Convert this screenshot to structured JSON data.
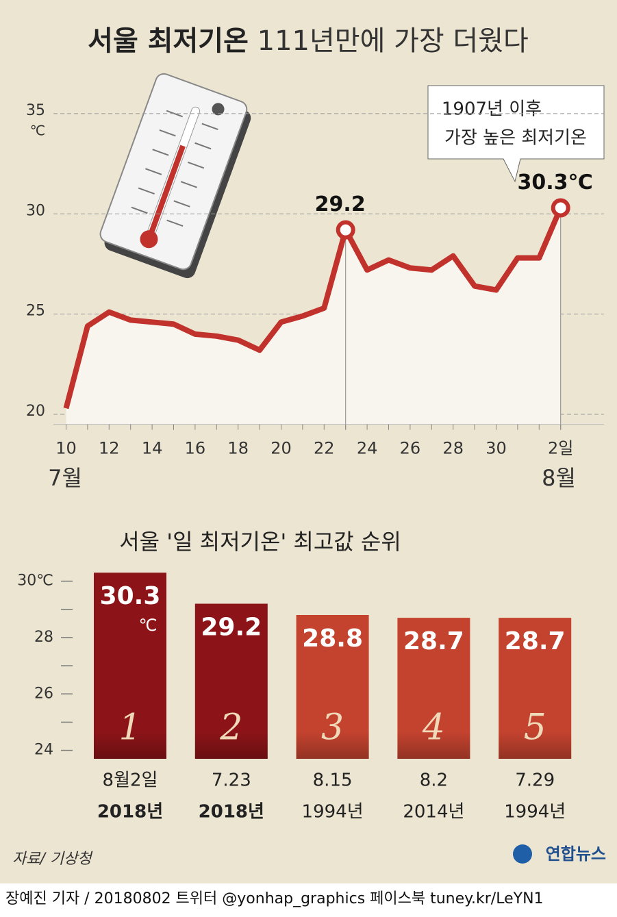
{
  "title_bold": "서울 최저기온",
  "title_light": "111년만에 가장 더웠다",
  "chart_data": [
    {
      "type": "line",
      "color": "#c0322b",
      "categories": [
        "10",
        null,
        "12",
        null,
        "14",
        null,
        "16",
        null,
        "18",
        null,
        "20",
        null,
        "22",
        null,
        "24",
        null,
        "26",
        null,
        "28",
        null,
        "30",
        null,
        null,
        "2일"
      ],
      "months": [
        "7월",
        "8월"
      ],
      "values": [
        20.3,
        24.4,
        25.1,
        24.7,
        24.6,
        24.5,
        24.0,
        23.9,
        23.7,
        23.2,
        24.6,
        24.9,
        25.3,
        29.2,
        27.2,
        27.7,
        27.3,
        27.2,
        27.9,
        26.4,
        26.2,
        27.8,
        27.8,
        30.3
      ],
      "value_labels": [
        null,
        null,
        null,
        null,
        null,
        null,
        null,
        null,
        null,
        null,
        null,
        null,
        null,
        "29.2",
        null,
        null,
        null,
        null,
        null,
        null,
        null,
        null,
        null,
        "30.3℃"
      ],
      "callout": [
        "1907년 이후",
        "가장 높은 최저기온"
      ],
      "y_unit": "℃",
      "ylim": [
        19.5,
        36.5
      ],
      "yticks": [
        20,
        25,
        30,
        35
      ],
      "grid": true
    },
    {
      "type": "bar",
      "title": "서울 '일 최저기온' 최고값 순위",
      "categories": [
        [
          "8월2일",
          "2018년"
        ],
        [
          "7.23",
          "2018년"
        ],
        [
          "8.15",
          "1994년"
        ],
        [
          "8.2",
          "2014년"
        ],
        [
          "7.29",
          "1994년"
        ]
      ],
      "values": [
        30.3,
        29.2,
        28.8,
        28.7,
        28.7
      ],
      "value_labels": [
        "30.3",
        "29.2",
        "28.8",
        "28.7",
        "28.7"
      ],
      "unit_label": "℃",
      "ranks": [
        1,
        2,
        3,
        4,
        5
      ],
      "highlight": [
        true,
        true,
        false,
        false,
        false
      ],
      "color": "#c4432f",
      "highlight_color": "#8c1418",
      "ylim": [
        23.7,
        30.5
      ],
      "yticks": [
        24,
        26,
        28,
        {
          "value": 30,
          "label": "30℃"
        }
      ],
      "minor_yticks": [
        25,
        27,
        29
      ]
    }
  ],
  "source": "자료/ 기상청",
  "brand": "연합뉴스",
  "footer": "장예진 기자 / 20180802 트위터 @yonhap_graphics  페이스북 tuney.kr/LeYN1"
}
